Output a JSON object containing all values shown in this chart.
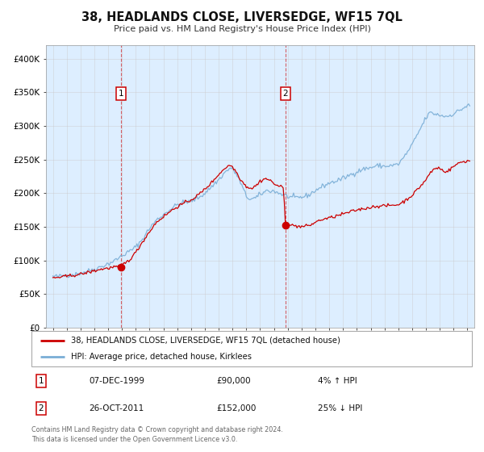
{
  "title": "38, HEADLANDS CLOSE, LIVERSEDGE, WF15 7QL",
  "subtitle": "Price paid vs. HM Land Registry's House Price Index (HPI)",
  "legend_line1": "38, HEADLANDS CLOSE, LIVERSEDGE, WF15 7QL (detached house)",
  "legend_line2": "HPI: Average price, detached house, Kirklees",
  "transaction1_date": "07-DEC-1999",
  "transaction1_price": "£90,000",
  "transaction1_hpi": "4% ↑ HPI",
  "transaction1_year": 1999.93,
  "transaction1_value": 90000,
  "transaction2_date": "26-OCT-2011",
  "transaction2_price": "£152,000",
  "transaction2_hpi": "25% ↓ HPI",
  "transaction2_year": 2011.82,
  "transaction2_value": 152000,
  "footer_line1": "Contains HM Land Registry data © Crown copyright and database right 2024.",
  "footer_line2": "This data is licensed under the Open Government Licence v3.0.",
  "red_color": "#cc0000",
  "blue_color": "#7aaed6",
  "background_color": "#ffffff",
  "shaded_region_color": "#ddeeff",
  "grid_color": "#cccccc",
  "ylim": [
    0,
    420000
  ],
  "xlim_start": 1994.5,
  "xlim_end": 2025.5
}
